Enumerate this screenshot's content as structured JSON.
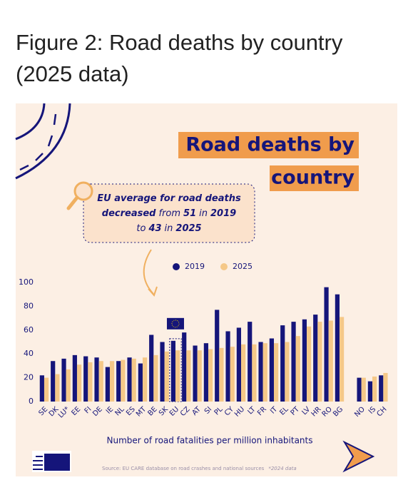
{
  "page_title": "Figure 2: Road deaths by country (2025 data)",
  "chart_data": {
    "type": "bar",
    "title": [
      "Road deaths by",
      "country"
    ],
    "callout": [
      [
        {
          "text": "EU average for road deaths",
          "bold": true
        }
      ],
      [
        {
          "text": "decreased",
          "bold": true
        },
        {
          "text": "from",
          "bold": false
        },
        {
          "text": "51",
          "bold": true
        },
        {
          "text": "in",
          "bold": false
        },
        {
          "text": "2019",
          "bold": true
        }
      ],
      [
        {
          "text": "to",
          "bold": false
        },
        {
          "text": "43",
          "bold": true
        },
        {
          "text": "in",
          "bold": false
        },
        {
          "text": "2025",
          "bold": true
        }
      ]
    ],
    "highlight": "EU",
    "categories": [
      "SE",
      "DK",
      "LU*",
      "EE",
      "FI",
      "DE",
      "IE",
      "NL",
      "ES",
      "MT",
      "BE",
      "SK",
      "EU",
      "CZ",
      "AT",
      "SI",
      "PL",
      "CY",
      "HU",
      "LT",
      "FR",
      "IT",
      "EL",
      "PT",
      "LV",
      "HR",
      "RO",
      "BG",
      null,
      "NO",
      "IS",
      "CH"
    ],
    "series": [
      {
        "name": "2019",
        "color": "#15157a",
        "values": [
          22,
          34,
          36,
          39,
          38,
          37,
          29,
          34,
          37,
          32,
          56,
          50,
          51,
          58,
          47,
          49,
          77,
          59,
          62,
          67,
          50,
          53,
          64,
          67,
          69,
          73,
          96,
          90,
          null,
          20,
          17,
          22
        ]
      },
      {
        "name": "2025",
        "color": "#f5c888",
        "values": [
          20,
          23,
          27,
          31,
          33,
          34,
          34,
          35,
          36,
          37,
          39,
          42,
          43,
          43,
          43,
          44,
          45,
          46,
          48,
          48,
          49,
          49,
          50,
          55,
          63,
          67,
          68,
          71,
          null,
          20,
          21,
          24
        ]
      }
    ],
    "ylim": [
      0,
      100
    ],
    "yticks": [
      0,
      20,
      40,
      60,
      80,
      100
    ],
    "grid": false,
    "xlabel": "Number of road fatalities per million inhabitants",
    "source": "Source: EU CARE database on road crashes and national sources",
    "note": "*2024 data"
  }
}
